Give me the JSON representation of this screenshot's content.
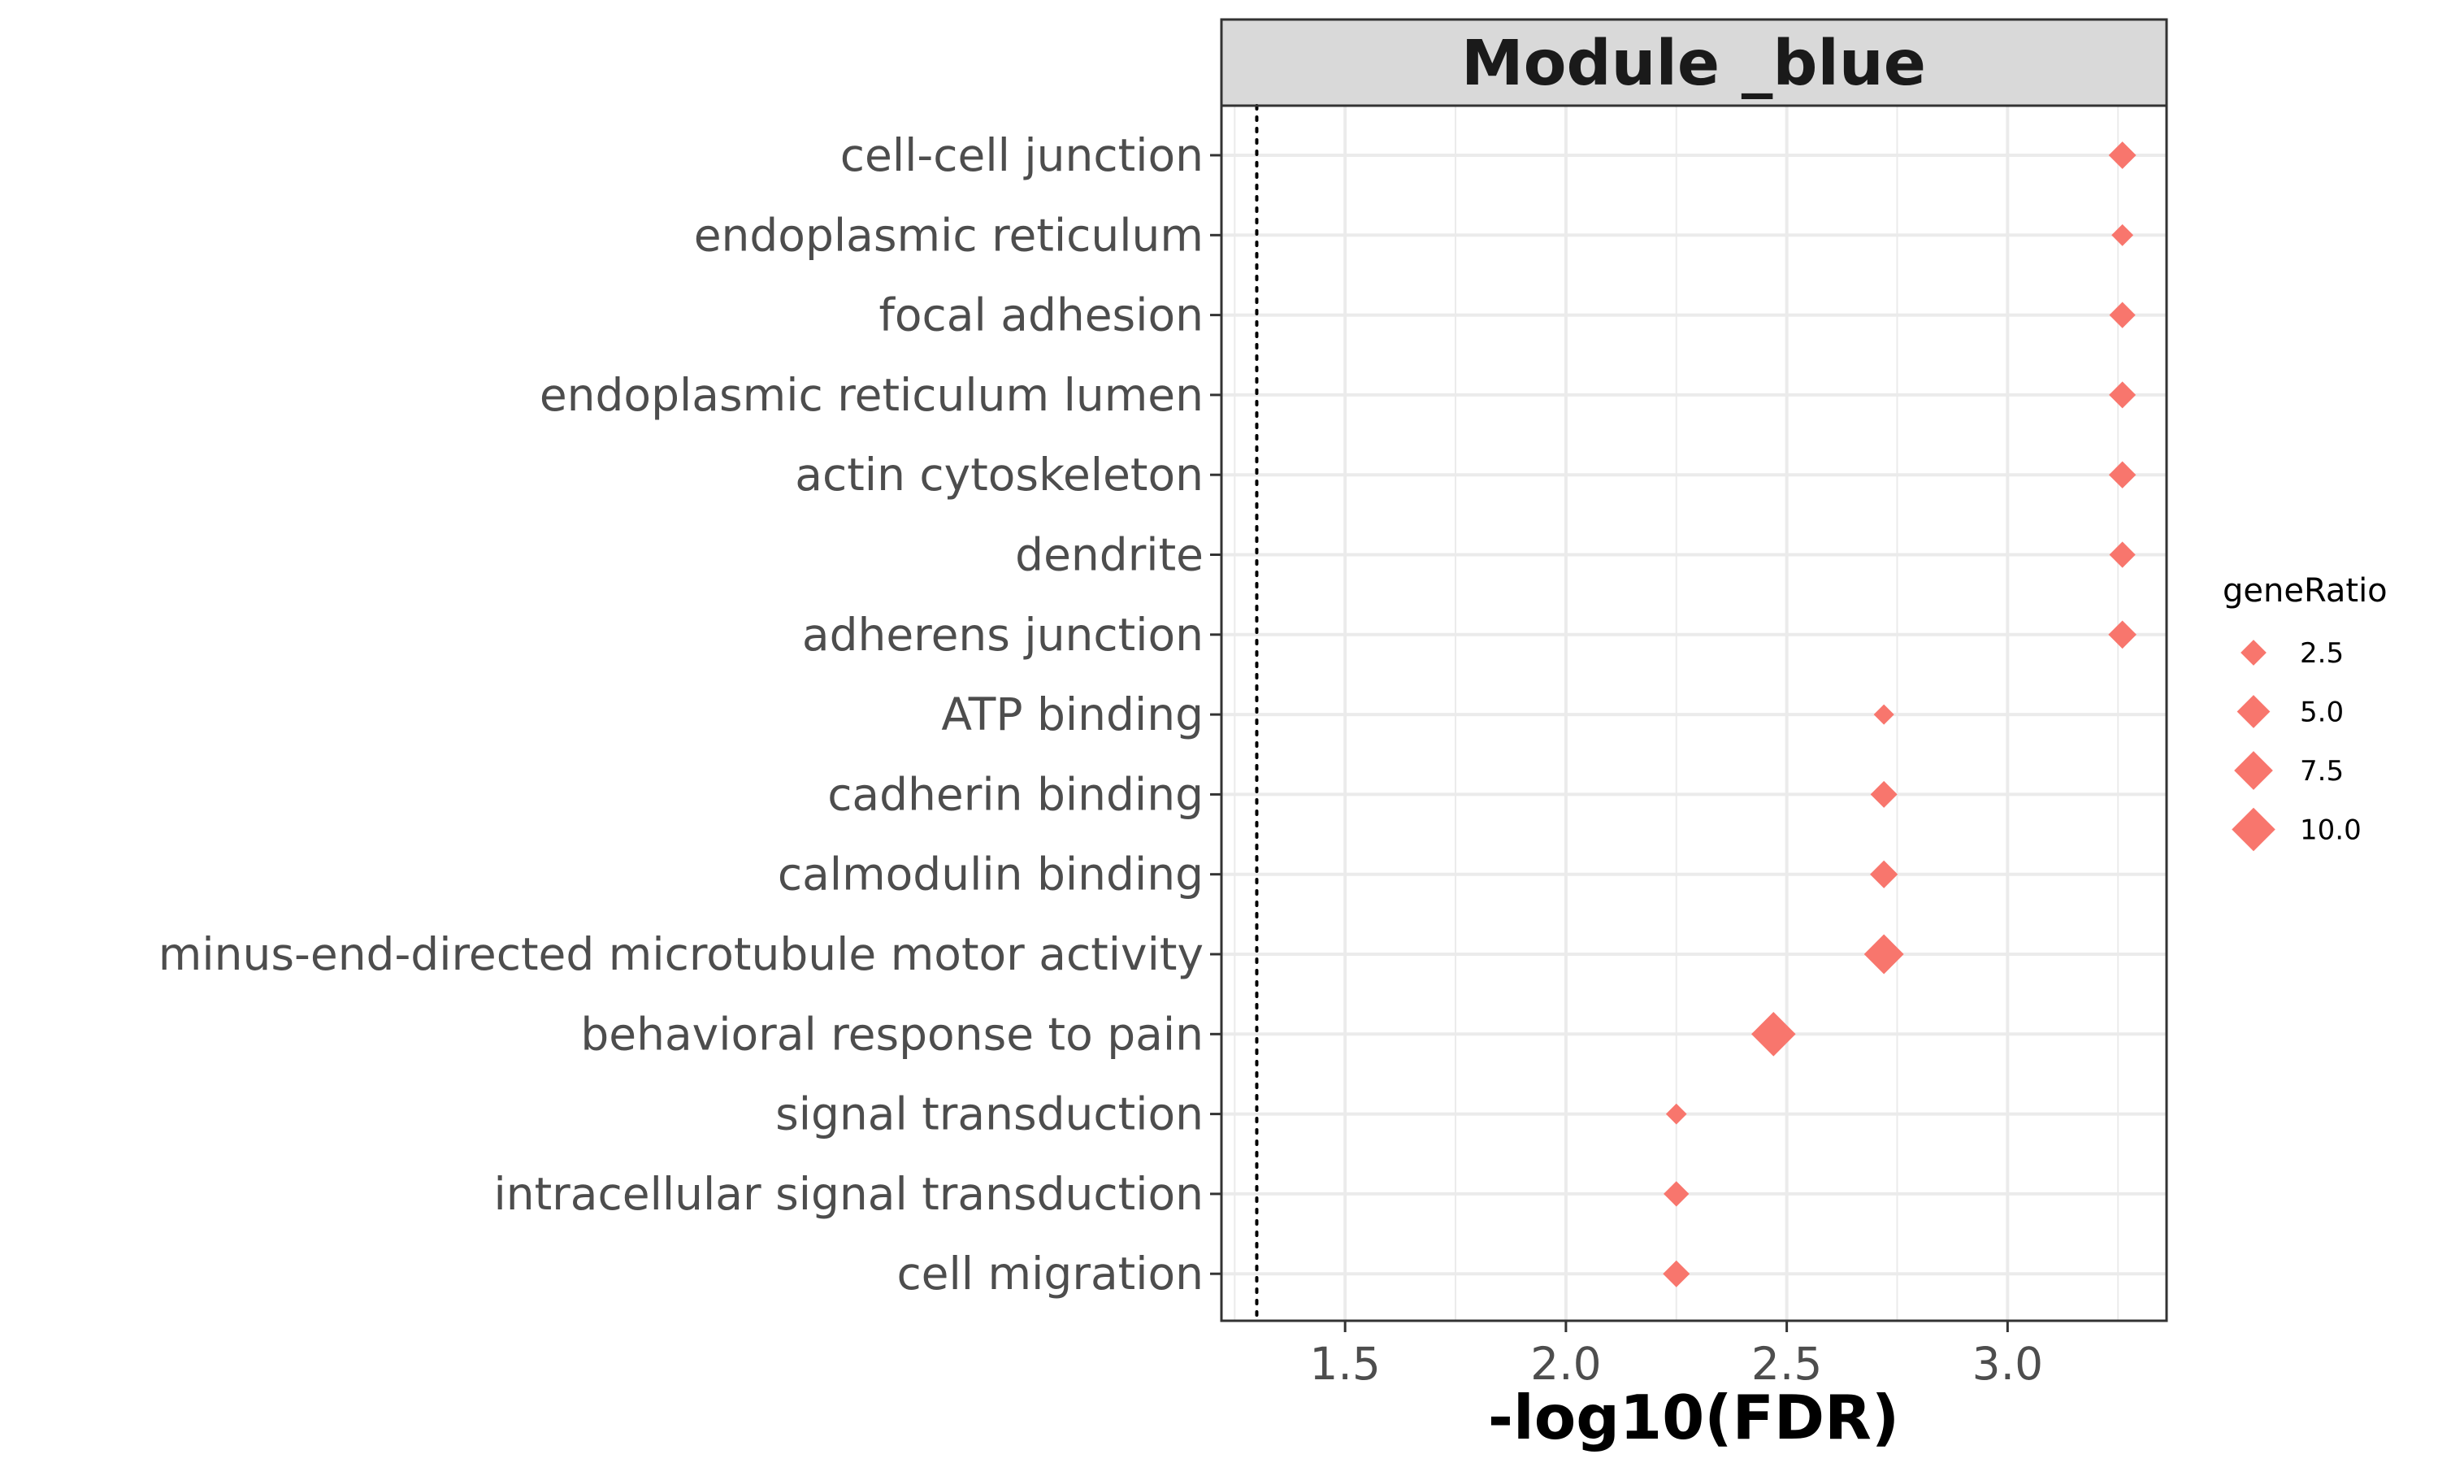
{
  "chart_data": {
    "type": "scatter",
    "title": "Module _blue",
    "xlabel": "-log10(FDR)",
    "ylabel": "",
    "xlim": [
      1.22,
      3.36
    ],
    "x_ticks": [
      1.5,
      2.0,
      2.5,
      3.0
    ],
    "x_tick_labels": [
      "1.5",
      "2.0",
      "2.5",
      "3.0"
    ],
    "threshold_line": 1.3,
    "grid": true,
    "marker": "diamond",
    "point_color": "#F8766D",
    "categories": [
      "cell-cell junction",
      "endoplasmic reticulum",
      "focal adhesion",
      "endoplasmic reticulum lumen",
      "actin cytoskeleton",
      "dendrite",
      "adherens junction",
      "ATP binding",
      "cadherin binding",
      "calmodulin binding",
      "minus-end-directed microtubule motor activity",
      "behavioral response to pain",
      "signal transduction",
      "intracellular signal transduction",
      "cell migration"
    ],
    "x": [
      3.26,
      3.26,
      3.26,
      3.26,
      3.26,
      3.26,
      3.26,
      2.72,
      2.72,
      2.72,
      2.72,
      2.47,
      2.25,
      2.25,
      2.25
    ],
    "size": [
      3.0,
      1.5,
      2.6,
      2.8,
      2.9,
      2.6,
      3.2,
      1.2,
      2.8,
      3.1,
      8.0,
      10.5,
      1.3,
      2.4,
      2.8
    ],
    "legend": {
      "title": "geneRatio",
      "position": "right",
      "values": [
        2.5,
        5.0,
        7.5,
        10.0
      ],
      "labels": [
        "2.5",
        "5.0",
        "7.5",
        "10.0"
      ]
    }
  }
}
